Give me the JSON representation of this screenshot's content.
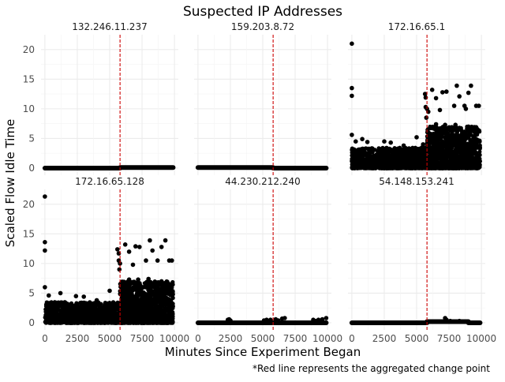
{
  "chart_data": {
    "type": "scatter",
    "title": "Suspected IP Addresses",
    "xlabel": "Minutes Since Experiment Began",
    "ylabel": "Scaled Flow Idle Time",
    "caption": "*Red line represents the aggregated change point",
    "xlim": [
      -300,
      10300
    ],
    "ylim": [
      -1.2,
      22.5
    ],
    "x_ticks": [
      0,
      2500,
      5000,
      7500,
      10000
    ],
    "y_ticks": [
      0,
      5,
      10,
      15,
      20
    ],
    "grid": true,
    "change_point_x": 5800,
    "colors": {
      "points": "#000000",
      "change_line": "#cc0000",
      "grid": "#ebebeb"
    },
    "panels": [
      {
        "label": "132.246.11.237",
        "mode": "flat",
        "segments": [
          {
            "x_start": 0,
            "x_end": 5800,
            "y": 0
          },
          {
            "x_start": 5800,
            "x_end": 9900,
            "y": 0.1
          }
        ],
        "points": []
      },
      {
        "label": "159.203.8.72",
        "mode": "flat",
        "segments": [
          {
            "x_start": 0,
            "x_end": 5800,
            "y": 0.1
          },
          {
            "x_start": 5800,
            "x_end": 9900,
            "y": 0
          }
        ],
        "points": []
      },
      {
        "label": "172.16.65.1",
        "mode": "dense",
        "band_pre": {
          "x_start": 0,
          "x_end": 5800,
          "y_max": 3.5
        },
        "band_post": {
          "x_start": 5800,
          "x_end": 9900,
          "y_max": 7
        },
        "points": [
          [
            0,
            21.0
          ],
          [
            0,
            13.5
          ],
          [
            0,
            12.2
          ],
          [
            0,
            5.6
          ],
          [
            300,
            4.5
          ],
          [
            800,
            4.9
          ],
          [
            1200,
            4.4
          ],
          [
            2500,
            4.5
          ],
          [
            3000,
            4.3
          ],
          [
            4000,
            3.8
          ],
          [
            5000,
            5.2
          ],
          [
            5500,
            4.0
          ],
          [
            5650,
            12.5
          ],
          [
            5700,
            11.9
          ],
          [
            5700,
            10.3
          ],
          [
            5750,
            8.5
          ],
          [
            5800,
            10.0
          ],
          [
            5900,
            9.5
          ],
          [
            6200,
            13.2
          ],
          [
            6500,
            11.8
          ],
          [
            7000,
            12.8
          ],
          [
            7300,
            12.9
          ],
          [
            6800,
            9.8
          ],
          [
            7900,
            10.5
          ],
          [
            8100,
            13.9
          ],
          [
            8300,
            12.1
          ],
          [
            8700,
            10.5
          ],
          [
            8800,
            10.0
          ],
          [
            9000,
            12.7
          ],
          [
            9200,
            13.9
          ],
          [
            9600,
            10.5
          ],
          [
            9800,
            10.5
          ],
          [
            6500,
            7.4
          ],
          [
            7200,
            7.3
          ],
          [
            8000,
            7.3
          ],
          [
            9000,
            7.0
          ]
        ]
      },
      {
        "label": "172.16.65.128",
        "mode": "dense",
        "band_pre": {
          "x_start": 0,
          "x_end": 5800,
          "y_max": 3.5
        },
        "band_post": {
          "x_start": 5800,
          "x_end": 9900,
          "y_max": 7
        },
        "points": [
          [
            0,
            21.3
          ],
          [
            0,
            13.6
          ],
          [
            0,
            12.2
          ],
          [
            0,
            6.0
          ],
          [
            300,
            4.6
          ],
          [
            1200,
            5.0
          ],
          [
            2400,
            4.5
          ],
          [
            3000,
            4.4
          ],
          [
            4000,
            3.8
          ],
          [
            5000,
            5.4
          ],
          [
            5600,
            12.4
          ],
          [
            5700,
            11.7
          ],
          [
            5700,
            10.5
          ],
          [
            5750,
            9.0
          ],
          [
            5800,
            10.0
          ],
          [
            6200,
            13.2
          ],
          [
            6500,
            12.0
          ],
          [
            7000,
            12.9
          ],
          [
            7300,
            12.8
          ],
          [
            6800,
            9.8
          ],
          [
            7800,
            10.5
          ],
          [
            8100,
            13.9
          ],
          [
            8300,
            12.2
          ],
          [
            8700,
            10.5
          ],
          [
            9000,
            12.8
          ],
          [
            9300,
            13.9
          ],
          [
            9600,
            10.5
          ],
          [
            9800,
            10.5
          ],
          [
            6500,
            7.3
          ],
          [
            7200,
            7.3
          ],
          [
            8000,
            7.4
          ],
          [
            9000,
            7.0
          ]
        ]
      },
      {
        "label": "44.230.212.240",
        "mode": "flat",
        "segments": [
          {
            "x_start": 0,
            "x_end": 9900,
            "y": 0
          }
        ],
        "points": [
          [
            2300,
            0.5
          ],
          [
            2400,
            0.6
          ],
          [
            2500,
            0.4
          ],
          [
            5100,
            0.4
          ],
          [
            5300,
            0.5
          ],
          [
            5600,
            0.5
          ],
          [
            6000,
            0.6
          ],
          [
            6200,
            0.4
          ],
          [
            6500,
            0.7
          ],
          [
            6700,
            0.8
          ],
          [
            8900,
            0.5
          ],
          [
            9100,
            0.3
          ],
          [
            9300,
            0.5
          ],
          [
            9600,
            0.6
          ],
          [
            9900,
            0.8
          ]
        ]
      },
      {
        "label": "54.148.153.241",
        "mode": "flat",
        "segments": [
          {
            "x_start": 0,
            "x_end": 5800,
            "y": 0
          },
          {
            "x_start": 5800,
            "x_end": 9000,
            "y": 0.2
          },
          {
            "x_start": 9000,
            "x_end": 9900,
            "y": 0
          }
        ],
        "points": [
          [
            7200,
            0.8
          ],
          [
            7300,
            0.5
          ],
          [
            7600,
            0.3
          ],
          [
            8300,
            0.3
          ],
          [
            8800,
            0.2
          ]
        ]
      }
    ]
  }
}
